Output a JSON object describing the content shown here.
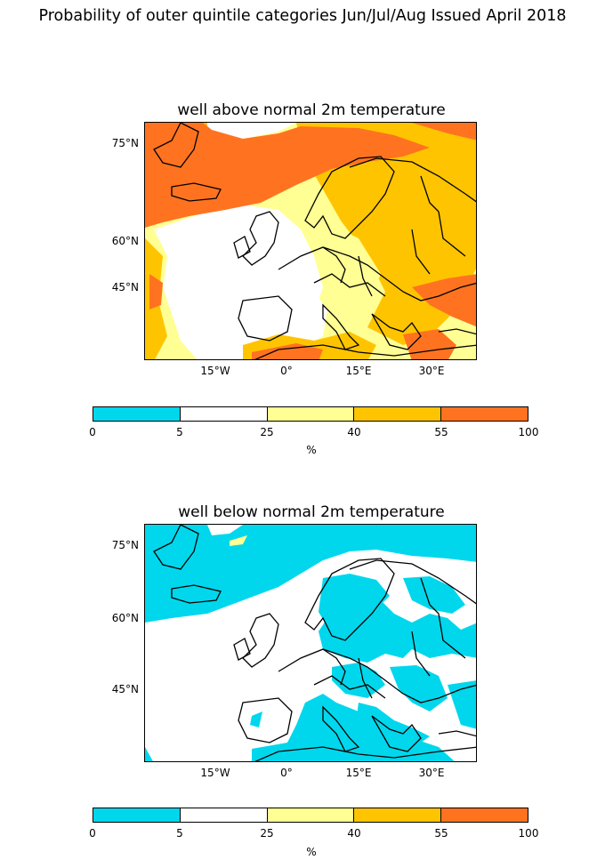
{
  "title": "Probability of outer quintile categories Jun/Jul/Aug Issued April 2018",
  "colorbar": {
    "ticks": [
      "0",
      "5",
      "25",
      "40",
      "55",
      "100"
    ],
    "colors": [
      "#00d7ec",
      "#ffffff",
      "#ffff94",
      "#ffc400",
      "#ff7320"
    ],
    "unit": "%"
  },
  "axes": {
    "lat_labels": [
      "75°N",
      "60°N",
      "45°N"
    ],
    "lon_labels": [
      "15°W",
      "0°",
      "15°E",
      "30°E"
    ]
  },
  "panels": [
    {
      "title": "well above normal 2m temperature"
    },
    {
      "title": "well below normal 2m temperature"
    }
  ]
}
